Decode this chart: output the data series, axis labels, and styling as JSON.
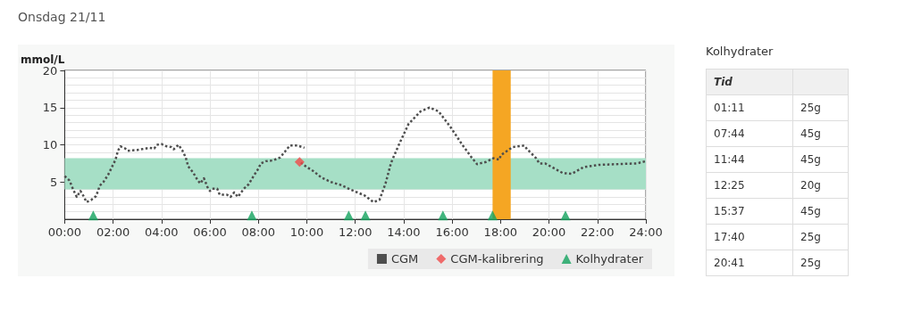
{
  "chart_data": [
    {
      "type": "line",
      "title": "Onsdag 21/11",
      "ylabel": "mmol/L",
      "xlim": [
        0,
        24
      ],
      "xticks": [
        {
          "value": 0,
          "label": "00:00"
        },
        {
          "value": 2,
          "label": "02:00"
        },
        {
          "value": 4,
          "label": "04:00"
        },
        {
          "value": 6,
          "label": "06:00"
        },
        {
          "value": 8,
          "label": "08:00"
        },
        {
          "value": 10,
          "label": "10:00"
        },
        {
          "value": 12,
          "label": "12:00"
        },
        {
          "value": 14,
          "label": "14:00"
        },
        {
          "value": 16,
          "label": "16:00"
        },
        {
          "value": 18,
          "label": "18:00"
        },
        {
          "value": 20,
          "label": "20:00"
        },
        {
          "value": 22,
          "label": "22:00"
        },
        {
          "value": 24,
          "label": "24:00"
        }
      ],
      "ylim": [
        0,
        20
      ],
      "yticks": [
        5,
        10,
        15,
        20
      ],
      "grid": true,
      "legend": "bottom right",
      "bands": [
        {
          "axis": "y",
          "from": 4,
          "to": 8.2,
          "color": "#a6dfc6"
        },
        {
          "axis": "x",
          "from": 17.67,
          "to": 18.42,
          "color": "#f5a623"
        }
      ],
      "series": [
        {
          "name": "CGM",
          "type": "line",
          "color": "#4d4d4d",
          "line_style": "dotted",
          "marker": "none",
          "x": [
            0,
            0.2,
            0.35,
            0.5,
            0.65,
            0.8,
            0.9,
            1.1,
            1.3,
            1.45,
            1.6,
            1.8,
            1.95,
            2.1,
            2.2,
            2.3,
            2.5,
            2.6,
            3.0,
            3.5,
            3.7,
            3.8,
            4.0,
            4.2,
            4.4,
            4.5,
            4.6,
            4.7,
            4.85,
            5.0,
            5.1,
            5.3,
            5.5,
            5.6,
            5.75,
            5.9,
            6.0,
            6.1,
            6.3,
            6.4,
            6.7,
            6.85,
            7.0,
            7.15,
            7.4,
            7.6,
            7.8,
            8.0,
            8.1,
            8.3,
            8.6,
            8.9,
            9.1,
            9.3,
            9.6,
            9.9,
            null,
            9.75,
            10.0,
            10.3,
            10.6,
            11.0,
            11.4,
            11.8,
            12.38,
            12.75,
            13.0,
            13.25,
            13.48,
            13.8,
            14.2,
            14.7,
            15.07,
            15.44,
            15.93,
            16.42,
            16.78,
            17.03,
            17.4,
            17.7,
            17.95,
            18.01,
            18.5,
            18.98,
            19.1,
            19.47,
            19.6,
            19.84,
            20.57,
            20.94,
            21.43,
            22.04,
            22.78,
            23.63,
            24
          ],
          "values": [
            5.8,
            5.2,
            4.0,
            3.0,
            3.8,
            3.0,
            2.3,
            2.6,
            3.1,
            4.5,
            5.0,
            6.0,
            7.0,
            8.0,
            9.2,
            9.8,
            9.5,
            9.2,
            9.3,
            9.6,
            9.5,
            10.0,
            10.1,
            9.8,
            9.7,
            9.4,
            9.7,
            10.0,
            9.3,
            8.3,
            7.1,
            6.3,
            5.2,
            4.8,
            5.5,
            4.3,
            3.8,
            4.1,
            4.1,
            3.3,
            3.3,
            3.0,
            3.6,
            3.0,
            4.1,
            4.7,
            5.8,
            6.8,
            7.5,
            7.8,
            7.9,
            8.3,
            9.1,
            9.9,
            9.9,
            9.6,
            null,
            7.6,
            7.0,
            6.4,
            5.6,
            5.0,
            4.6,
            4.0,
            3.2,
            2.3,
            2.6,
            4.8,
            7.6,
            10.0,
            12.8,
            14.5,
            15.0,
            14.5,
            12.4,
            10.0,
            8.4,
            7.4,
            7.7,
            8.2,
            8.0,
            8.6,
            9.7,
            9.9,
            9.4,
            8.2,
            7.5,
            7.5,
            6.2,
            6.1,
            7.0,
            7.3,
            7.4,
            7.5,
            7.8
          ]
        },
        {
          "name": "CGM-kalibrering",
          "type": "scatter",
          "color": "#f04a4a",
          "marker": "diamond",
          "x": [
            9.7
          ],
          "values": [
            7.7
          ]
        },
        {
          "name": "Kolhydrater",
          "type": "scatter",
          "color": "#13a35e",
          "marker": "triangle",
          "x": [
            1.18,
            7.73,
            11.73,
            12.42,
            15.62,
            17.67,
            20.68
          ],
          "values": [
            0.5,
            0.5,
            0.5,
            0.5,
            0.5,
            0.5,
            0.5
          ]
        }
      ]
    },
    {
      "type": "other",
      "title": "Kolhydrater",
      "xlabel": "Tid",
      "categories": [
        "01:11",
        "07:44",
        "11:44",
        "12:25",
        "15:37",
        "17:40",
        "20:41"
      ],
      "value_labels": [
        "25g",
        "45g",
        "45g",
        "20g",
        "45g",
        "25g",
        "25g"
      ]
    }
  ]
}
